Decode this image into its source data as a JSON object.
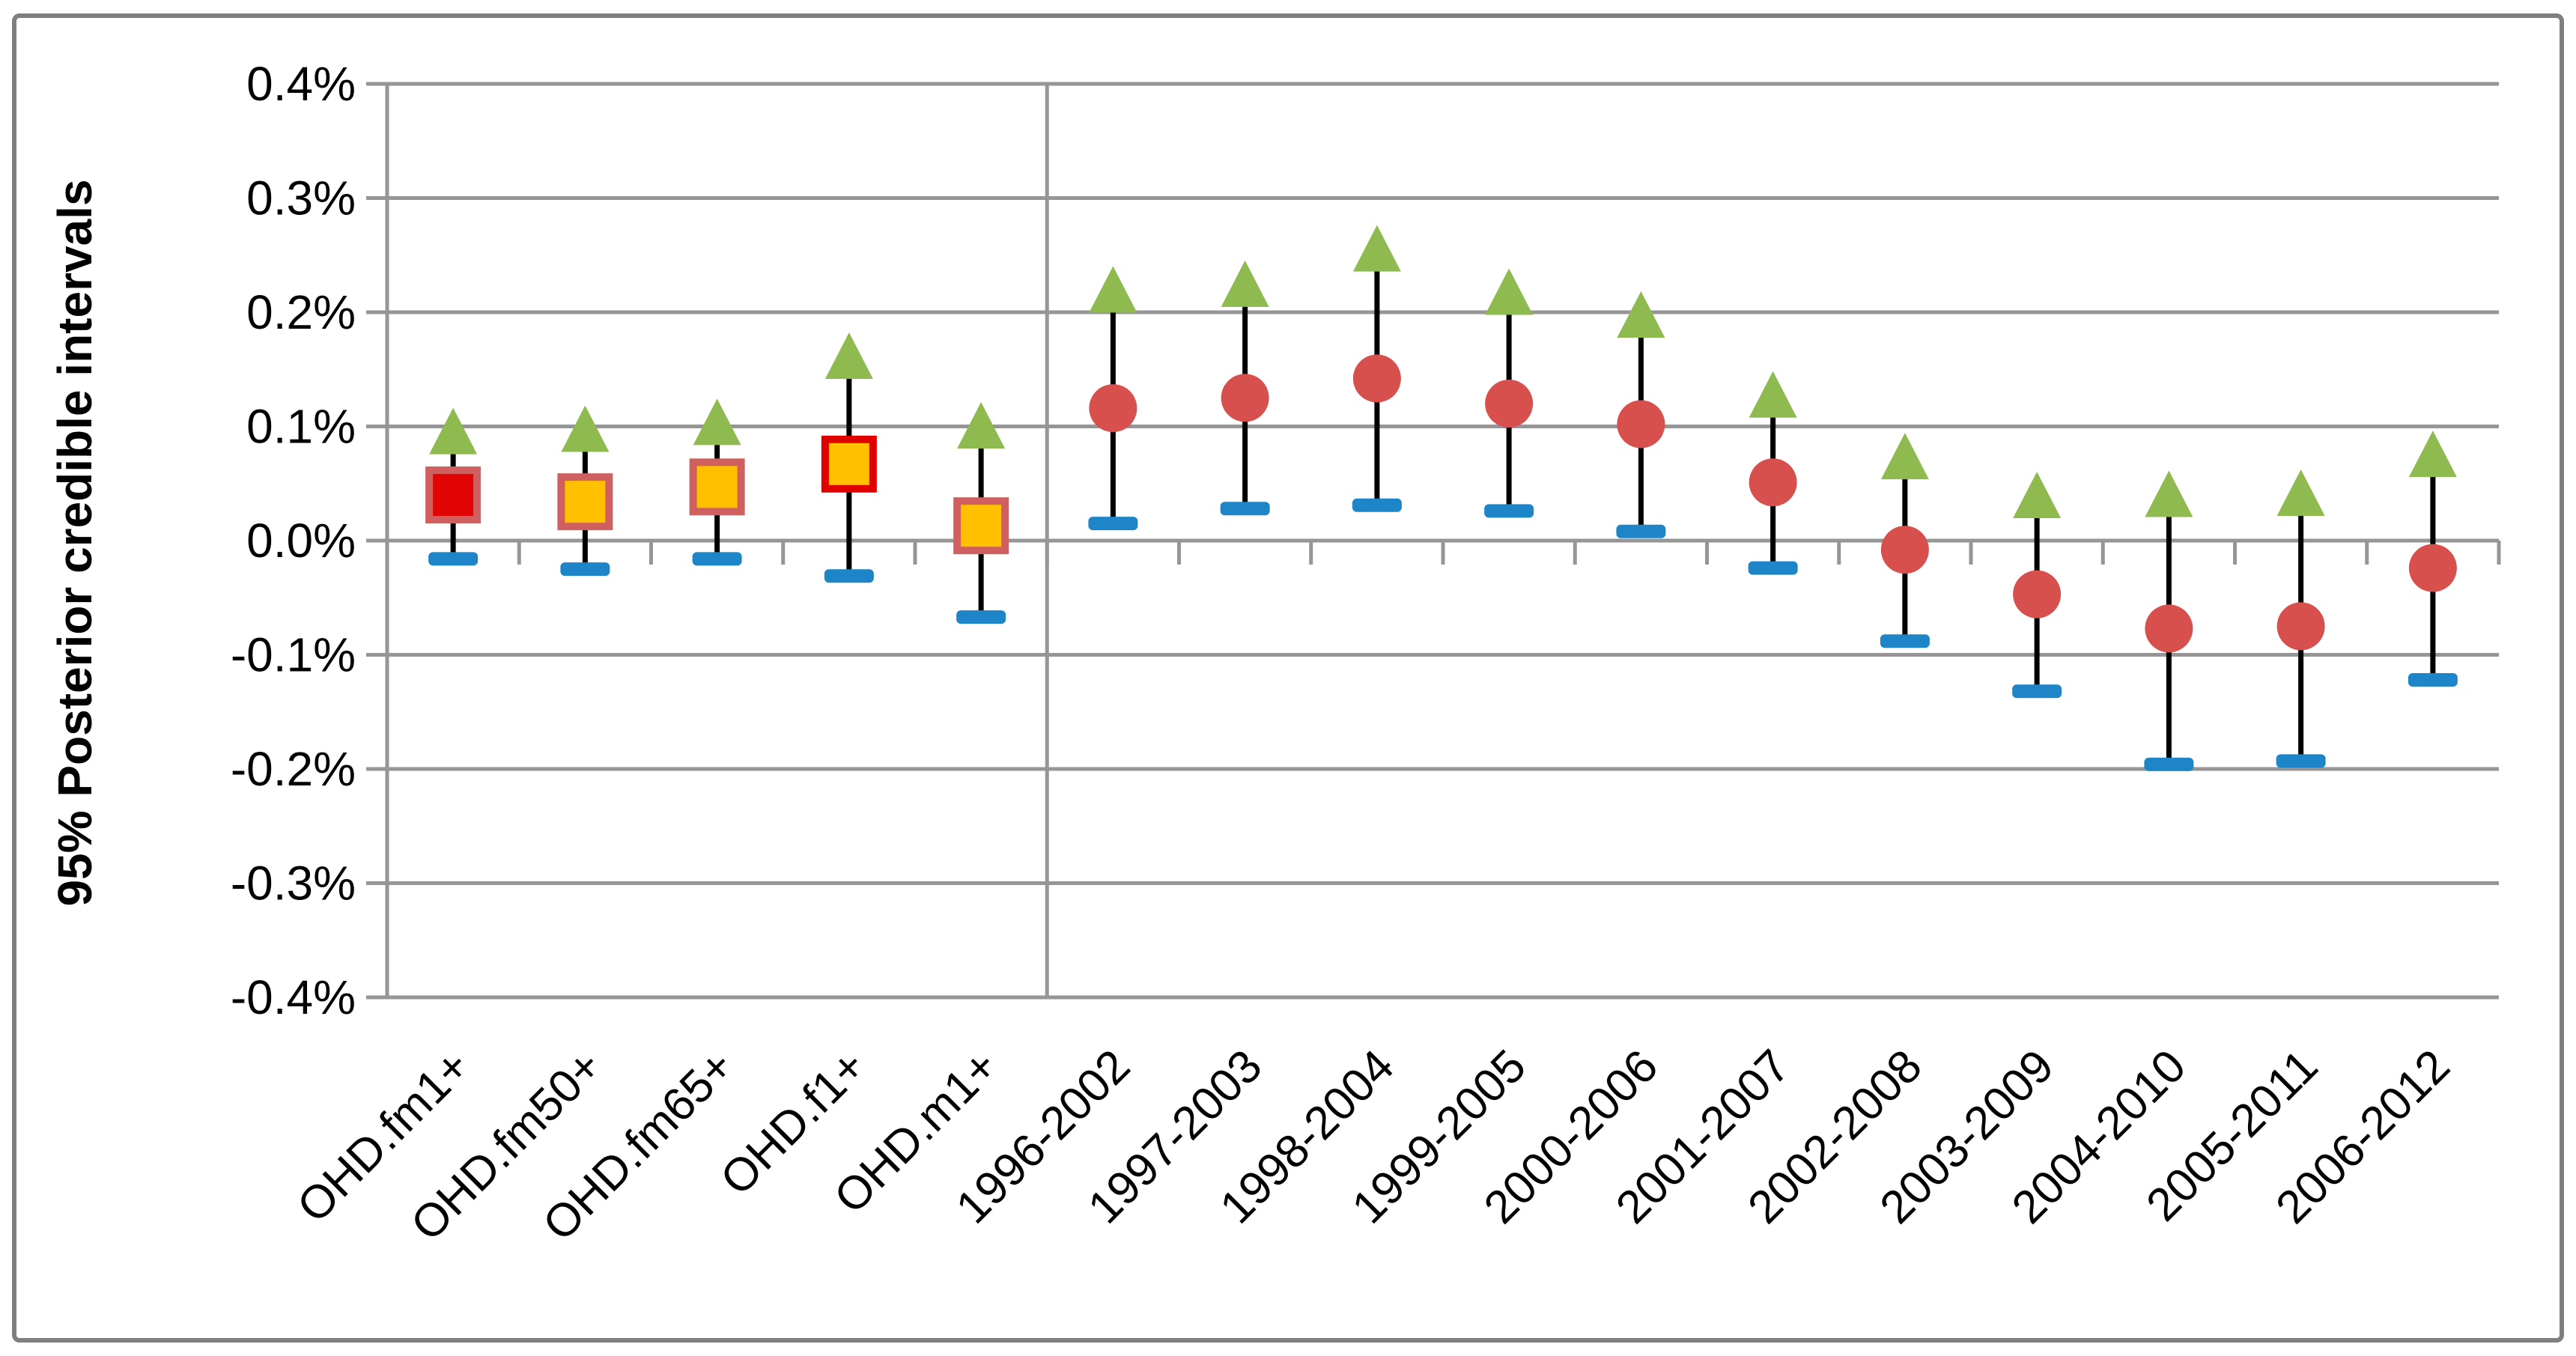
{
  "chart_data": {
    "type": "interval",
    "title": "",
    "ylabel": "95% Posterior credible intervals",
    "xlabel": "",
    "ylim_percent": [
      -0.4,
      0.4
    ],
    "grid": "horizontal",
    "legend": "none",
    "ytick_labels": [
      "0.4%",
      "0.3%",
      "0.2%",
      "0.1%",
      "0.0%",
      "-0.1%",
      "-0.2%",
      "-0.3%",
      "-0.4%"
    ],
    "ytick_values_percent": [
      0.4,
      0.3,
      0.2,
      0.1,
      0.0,
      -0.1,
      -0.2,
      -0.3,
      -0.4
    ],
    "categories": [
      "OHD.fm1+",
      "OHD.fm50+",
      "OHD.fm65+",
      "OHD.f1+",
      "OHD.m1+",
      "1996-2002",
      "1997-2003",
      "1998-2004",
      "1999-2005",
      "2000-2006",
      "2001-2007",
      "2002-2008",
      "2003-2009",
      "2004-2010",
      "2005-2011",
      "2006-2012"
    ],
    "divider_after_category_index": 4,
    "series": [
      {
        "name": "upper 95% bound",
        "marker": "triangle-up",
        "color": "#8fba50",
        "values_percent": [
          0.096,
          0.098,
          0.104,
          0.162,
          0.101,
          0.22,
          0.225,
          0.256,
          0.218,
          0.198,
          0.128,
          0.074,
          0.04,
          0.041,
          0.042,
          0.076
        ]
      },
      {
        "name": "posterior median",
        "marker": "per-category",
        "color": "#d8504d",
        "values_percent": [
          0.04,
          0.034,
          0.047,
          0.067,
          0.013,
          0.116,
          0.125,
          0.142,
          0.12,
          0.102,
          0.051,
          -0.008,
          -0.047,
          -0.077,
          -0.075,
          -0.024
        ]
      },
      {
        "name": "lower 95% bound",
        "marker": "dash",
        "color": "#1e86c8",
        "values_percent": [
          -0.016,
          -0.025,
          -0.016,
          -0.031,
          -0.067,
          0.015,
          0.028,
          0.031,
          0.026,
          0.008,
          -0.024,
          -0.088,
          -0.132,
          -0.196,
          -0.193,
          -0.122
        ]
      }
    ],
    "center_marker_shapes": [
      {
        "shape": "square",
        "fill": "#e00404",
        "stroke": "#d06060"
      },
      {
        "shape": "square",
        "fill": "#ffc000",
        "stroke": "#d06060"
      },
      {
        "shape": "square",
        "fill": "#ffc000",
        "stroke": "#d06060"
      },
      {
        "shape": "square",
        "fill": "#ffc000",
        "stroke": "#e00000"
      },
      {
        "shape": "square",
        "fill": "#ffc000",
        "stroke": "#d06060"
      },
      {
        "shape": "circle",
        "fill": "#d8504d"
      },
      {
        "shape": "circle",
        "fill": "#d8504d"
      },
      {
        "shape": "circle",
        "fill": "#d8504d"
      },
      {
        "shape": "circle",
        "fill": "#d8504d"
      },
      {
        "shape": "circle",
        "fill": "#d8504d"
      },
      {
        "shape": "circle",
        "fill": "#d8504d"
      },
      {
        "shape": "circle",
        "fill": "#d8504d"
      },
      {
        "shape": "circle",
        "fill": "#d8504d"
      },
      {
        "shape": "circle",
        "fill": "#d8504d"
      },
      {
        "shape": "circle",
        "fill": "#d8504d"
      },
      {
        "shape": "circle",
        "fill": "#d8504d"
      }
    ],
    "style": {
      "gridline_color": "#969696",
      "axis_color": "#969696",
      "frame_color": "#7f7f7f",
      "connector_color": "#000000",
      "text_color": "#000000"
    }
  }
}
